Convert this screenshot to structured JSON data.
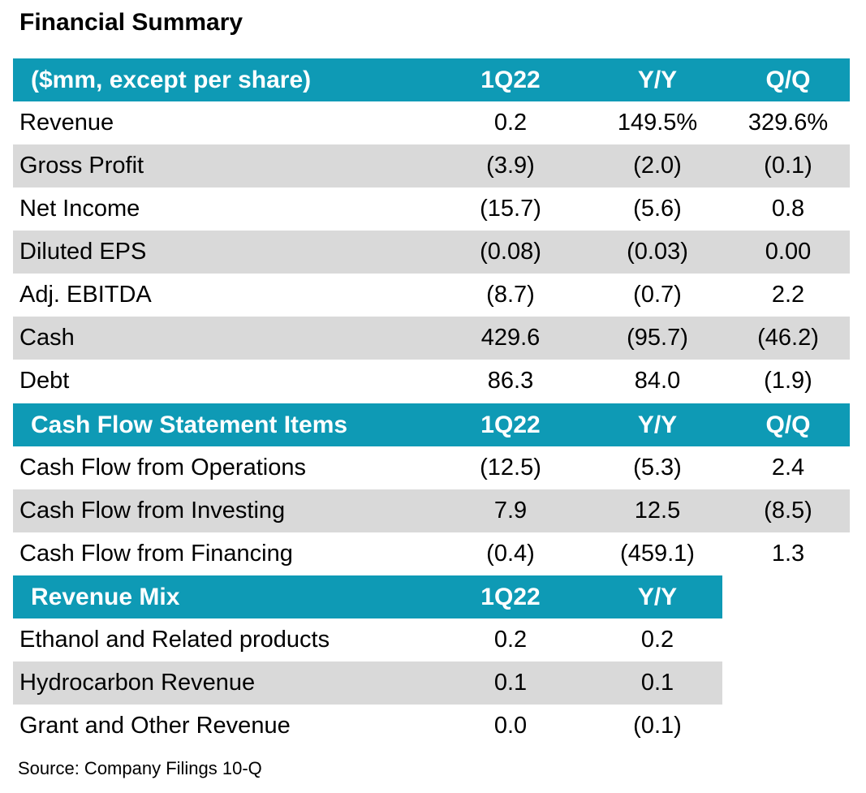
{
  "title": "Financial Summary",
  "summary": {
    "header": [
      "($mm, except per share)",
      "1Q22",
      "Y/Y",
      "Q/Q"
    ],
    "rows": [
      [
        "Revenue",
        "0.2",
        "149.5%",
        "329.6%"
      ],
      [
        "Gross Profit",
        "(3.9)",
        "(2.0)",
        "(0.1)"
      ],
      [
        "Net Income",
        "(15.7)",
        "(5.6)",
        "0.8"
      ],
      [
        "Diluted EPS",
        "(0.08)",
        "(0.03)",
        "0.00"
      ],
      [
        "Adj. EBITDA",
        "(8.7)",
        "(0.7)",
        "2.2"
      ],
      [
        "Cash",
        "429.6",
        "(95.7)",
        "(46.2)"
      ],
      [
        "Debt",
        "86.3",
        "84.0",
        "(1.9)"
      ]
    ]
  },
  "cash_flow": {
    "header": [
      "Cash Flow Statement Items",
      "1Q22",
      "Y/Y",
      "Q/Q"
    ],
    "rows": [
      [
        "Cash Flow from Operations",
        "(12.5)",
        "(5.3)",
        "2.4"
      ],
      [
        "Cash Flow from Investing",
        "7.9",
        "12.5",
        "(8.5)"
      ],
      [
        "Cash Flow from Financing",
        "(0.4)",
        "(459.1)",
        "1.3"
      ]
    ]
  },
  "revenue_mix": {
    "header": [
      "Revenue Mix",
      "1Q22",
      "Y/Y"
    ],
    "rows": [
      [
        "Ethanol and Related products",
        "0.2",
        "0.2"
      ],
      [
        "Hydrocarbon Revenue",
        "0.1",
        "0.1"
      ],
      [
        "Grant and Other Revenue",
        "0.0",
        "(0.1)"
      ]
    ]
  },
  "source": "Source: Company Filings 10-Q",
  "colors": {
    "header_bg": "#0e9ab5",
    "shade_bg": "#d9d9d9"
  }
}
